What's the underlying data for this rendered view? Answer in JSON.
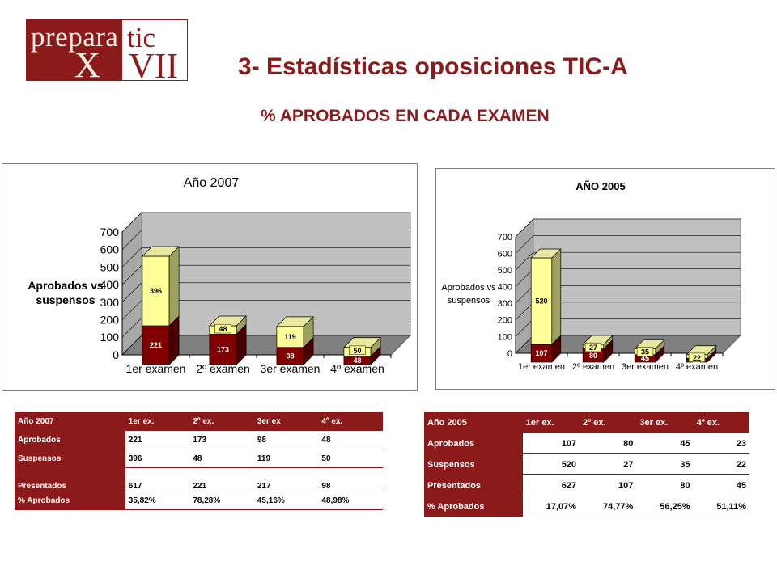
{
  "logo": {
    "text_top": "preparatic",
    "text_bottom": "XVII"
  },
  "page": {
    "title": "3- Estadísticas oposiciones TIC-A",
    "subtitle": "% APROBADOS EN CADA EXAMEN"
  },
  "colors": {
    "brand": "#8b1a1a",
    "bar_top": "#ffff99",
    "bar_bottom": "#800000",
    "plot_wall": "#c0c0c0"
  },
  "chart_data": [
    {
      "type": "bar",
      "title": "Año 2007",
      "ylabel_lines": [
        "Aprobados vs",
        "suspensos"
      ],
      "categories": [
        "1er examen",
        "2º examen",
        "3er examen",
        "4º examen"
      ],
      "ylim": [
        0,
        700
      ],
      "yticks": [
        0,
        100,
        200,
        300,
        400,
        500,
        600,
        700
      ],
      "series": [
        {
          "name": "Aprobados",
          "values": [
            221,
            173,
            98,
            48
          ]
        },
        {
          "name": "Suspensos",
          "values": [
            396,
            48,
            119,
            50
          ]
        }
      ],
      "stacked": true
    },
    {
      "type": "bar",
      "title": "AÑO 2005",
      "ylabel_lines": [
        "Aprobados vs",
        "suspensos"
      ],
      "categories": [
        "1er examen",
        "2º examen",
        "3er examen",
        "4º examen"
      ],
      "ylim": [
        0,
        700
      ],
      "yticks": [
        0,
        100,
        200,
        300,
        400,
        500,
        600,
        700
      ],
      "series": [
        {
          "name": "Aprobados",
          "values": [
            107,
            80,
            45,
            23
          ]
        },
        {
          "name": "Suspensos",
          "values": [
            520,
            27,
            35,
            22
          ]
        }
      ],
      "stacked": true
    }
  ],
  "table2007": {
    "headers": [
      "Año 2007",
      "1er ex.",
      "2º ex.",
      "3er ex",
      "4º ex."
    ],
    "rows": [
      {
        "label": "Aprobados",
        "values": [
          "221",
          "173",
          "98",
          "48"
        ]
      },
      {
        "label": "Suspensos",
        "values": [
          "396",
          "48",
          "119",
          "50"
        ]
      },
      {
        "label": "Presentados",
        "values": [
          "617",
          "221",
          "217",
          "98"
        ]
      },
      {
        "label": "% Aprobados",
        "values": [
          "35,82%",
          "78,28%",
          "45,16%",
          "48,98%"
        ]
      }
    ]
  },
  "table2005": {
    "headers": [
      "Año 2005",
      "1er ex.",
      "2º ex.",
      "3er ex.",
      "4º ex."
    ],
    "rows": [
      {
        "label": "Aprobados",
        "values": [
          "107",
          "80",
          "45",
          "23"
        ]
      },
      {
        "label": "Suspensos",
        "values": [
          "520",
          "27",
          "35",
          "22"
        ]
      },
      {
        "label": "Presentados",
        "values": [
          "627",
          "107",
          "80",
          "45"
        ]
      },
      {
        "label": "% Aprobados",
        "values": [
          "17,07%",
          "74,77%",
          "56,25%",
          "51,11%"
        ]
      }
    ]
  }
}
